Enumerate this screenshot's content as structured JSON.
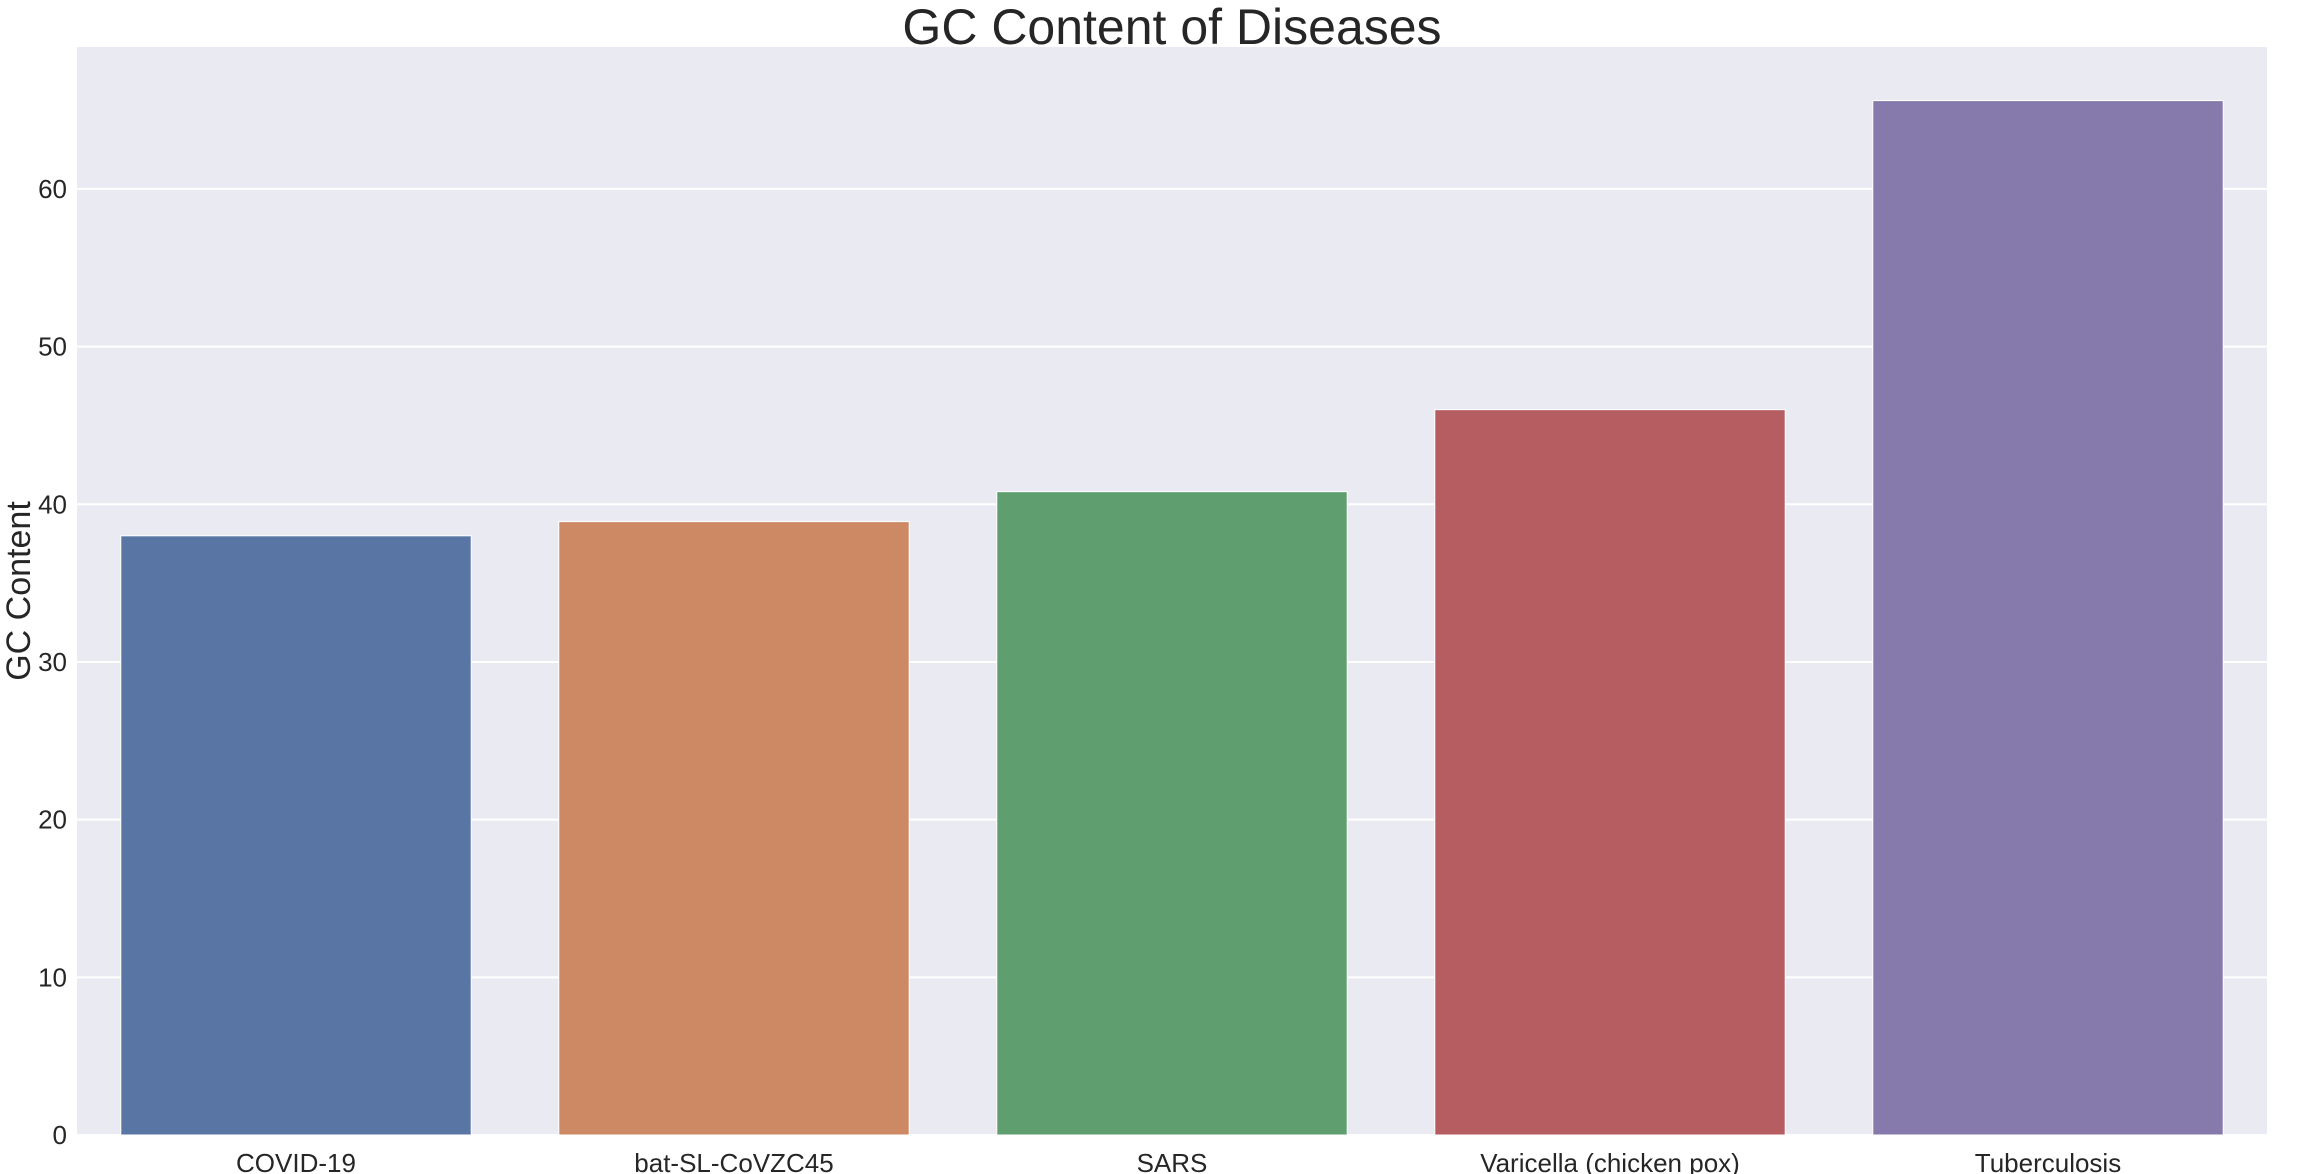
{
  "chart_data": {
    "type": "bar",
    "title": "GC Content of Diseases",
    "xlabel": "",
    "ylabel": "GC Content",
    "categories": [
      "COVID-19",
      "bat-SL-CoVZC45",
      "SARS",
      "Varicella (chicken pox)",
      "Tuberculosis"
    ],
    "values": [
      38.0,
      38.9,
      40.8,
      46.0,
      65.6
    ],
    "colors": [
      "#5875a4",
      "#cc8963",
      "#5f9e6e",
      "#b55d60",
      "#857aab"
    ],
    "ylim": [
      0,
      69
    ],
    "yticks": [
      0,
      10,
      20,
      30,
      40,
      50,
      60
    ],
    "grid": true,
    "background": "#eaeaf2",
    "gridColor": "#ffffff"
  }
}
